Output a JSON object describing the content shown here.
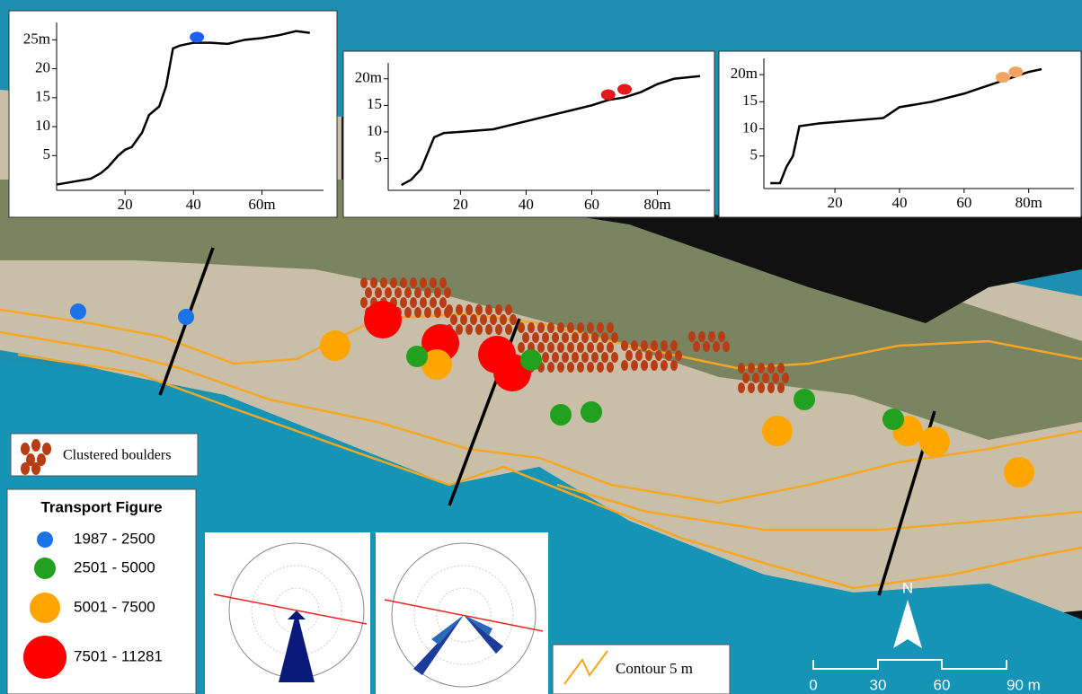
{
  "profiles": [
    {
      "xlim": [
        0,
        78
      ],
      "ylim": [
        -1,
        28
      ],
      "xticks": [
        20,
        40,
        {
          "value": 60,
          "label": "60m"
        }
      ],
      "yticks": [
        5,
        10,
        15,
        20,
        {
          "value": 25,
          "label": "25m"
        }
      ],
      "line": {
        "x": [
          0,
          5,
          10,
          13,
          15,
          18,
          20,
          22,
          25,
          27,
          30,
          32,
          34,
          36,
          40,
          45,
          50,
          55,
          60,
          65,
          70,
          74
        ],
        "y": [
          0,
          0.5,
          1,
          2,
          3,
          5,
          6,
          6.5,
          9,
          12,
          13.5,
          17,
          23.5,
          24,
          24.5,
          24.5,
          24.3,
          25,
          25.3,
          25.8,
          26.5,
          26.2
        ]
      },
      "boulders": {
        "x": [
          41
        ],
        "y": [
          25
        ],
        "color": "#1f5fff"
      }
    },
    {
      "xlim": [
        -2,
        96
      ],
      "ylim": [
        -1,
        23
      ],
      "xticks": [
        20,
        40,
        60,
        {
          "value": 80,
          "label": "80m"
        }
      ],
      "yticks": [
        5,
        10,
        15,
        {
          "value": 20,
          "label": "20m"
        }
      ],
      "line": {
        "x": [
          2,
          5,
          8,
          10,
          12,
          15,
          20,
          30,
          40,
          50,
          60,
          65,
          70,
          75,
          80,
          85,
          93
        ],
        "y": [
          0,
          1,
          3,
          6,
          9,
          9.8,
          10,
          10.5,
          12,
          13.5,
          15,
          16,
          16.5,
          17.5,
          19,
          20,
          20.5
        ]
      },
      "boulders": {
        "x": [
          65,
          70
        ],
        "y": [
          16.5,
          17.5
        ],
        "color": "#e31a1c"
      }
    },
    {
      "xlim": [
        -2,
        94
      ],
      "ylim": [
        -1,
        23
      ],
      "xticks": [
        20,
        40,
        60,
        {
          "value": 80,
          "label": "80m"
        }
      ],
      "yticks": [
        5,
        10,
        15,
        {
          "value": 20,
          "label": "20m"
        }
      ],
      "line": {
        "x": [
          0,
          3,
          5,
          7,
          9,
          15,
          25,
          35,
          40,
          50,
          60,
          65,
          70,
          75,
          80,
          84
        ],
        "y": [
          0,
          0,
          3,
          5,
          10.5,
          11,
          11.5,
          12,
          14,
          15,
          16.5,
          17.5,
          18.5,
          19.5,
          20.5,
          21
        ]
      },
      "boulders": {
        "x": [
          72,
          76
        ],
        "y": [
          19,
          20
        ],
        "color": "#f4a460"
      }
    }
  ],
  "legend": {
    "title": "Transport Figure",
    "classes": [
      {
        "label": "1987 - 2500",
        "color": "#1a73e8"
      },
      {
        "label": "2501 - 5000",
        "color": "#22a020"
      },
      {
        "label": "5001 - 7500",
        "color": "#ffa500"
      },
      {
        "label": "7501 - 11281",
        "color": "#ff0000"
      }
    ]
  },
  "boulder_legend": {
    "label": "Clustered boulders",
    "color": "#b83c14"
  },
  "contour_legend": {
    "label": "Contour 5 m",
    "color": "#f5a623"
  },
  "scale_bar": {
    "labels": [
      "0",
      "30",
      "60",
      "90 m"
    ]
  },
  "north": "N"
}
